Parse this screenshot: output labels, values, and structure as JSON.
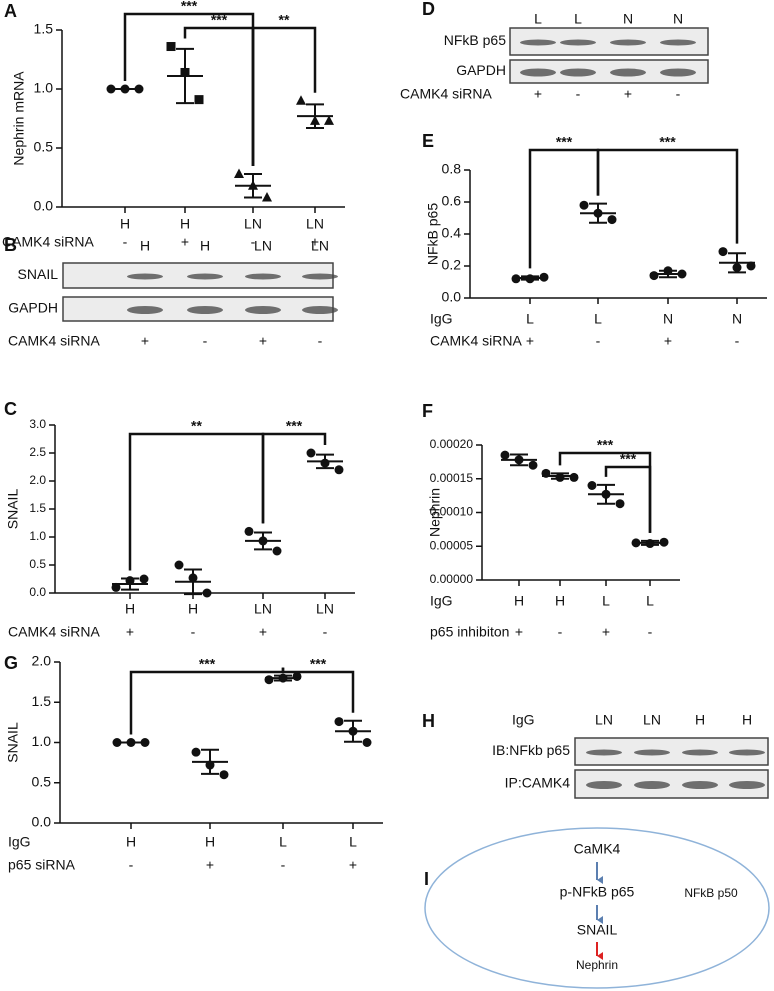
{
  "chart_data": [
    {
      "type": "dot",
      "label": "A",
      "ylabel": "Nephrin mRNA",
      "categories": [
        "H",
        "H",
        "LN",
        "LN"
      ],
      "rows": [
        {
          "label": "CAMK4 siRNA",
          "values": [
            "-",
            "+",
            "-",
            "+"
          ]
        }
      ],
      "markers": [
        "circle",
        "square",
        "triangle",
        "triangle"
      ],
      "ylim": [
        0,
        1.5
      ],
      "yticks": [
        {
          "value": 0,
          "label": "0.0"
        },
        0.5,
        {
          "value": 1,
          "label": "1.0"
        },
        1.5
      ],
      "points": [
        [
          1,
          1,
          1
        ],
        [
          1.36,
          1.14,
          0.91
        ],
        [
          0.28,
          0.18,
          0.08
        ],
        [
          0.9,
          0.73,
          0.73
        ]
      ],
      "means": [
        1,
        1.11,
        0.18,
        0.77
      ],
      "errors": [
        0,
        0.23,
        0.1,
        0.1
      ],
      "annotations": [
        {
          "from": 0,
          "to": 2,
          "text": "***"
        },
        {
          "from": 1,
          "to": 2,
          "text": "***"
        },
        {
          "from": 2,
          "to": 3,
          "text": "**"
        }
      ]
    },
    {
      "type": "dot",
      "label": "C",
      "ylabel": "SNAIL",
      "categories": [
        "H",
        "H",
        "LN",
        "LN"
      ],
      "rows": [
        {
          "label": "CAMK4 siRNA",
          "values": [
            "+",
            "-",
            "+",
            "-"
          ]
        }
      ],
      "ylim": [
        0,
        3
      ],
      "yticks": [
        {
          "value": 0,
          "label": "0.0"
        },
        0.5,
        {
          "value": 1,
          "label": "1.0"
        },
        1.5,
        {
          "value": 2,
          "label": "2.0"
        },
        2.5,
        {
          "value": 3,
          "label": "3.0"
        }
      ],
      "points": [
        [
          0.1,
          0.22,
          0.25
        ],
        [
          0.5,
          0.27,
          0
        ],
        [
          1.1,
          0.93,
          0.75
        ],
        [
          2.5,
          2.32,
          2.2
        ]
      ],
      "means": [
        0.16,
        0.2,
        0.93,
        2.35
      ],
      "errors": [
        0.1,
        0.22,
        0.15,
        0.12
      ],
      "annotations": [
        {
          "from": 0,
          "to": 2,
          "text": "**"
        },
        {
          "from": 2,
          "to": 3,
          "text": "***"
        }
      ]
    },
    {
      "type": "dot",
      "label": "E",
      "ylabel": "NFkB p65",
      "category_label": "IgG",
      "categories": [
        "L",
        "L",
        "N",
        "N"
      ],
      "rows": [
        {
          "label": "CAMK4 siRNA",
          "values": [
            "+",
            "-",
            "+",
            "-"
          ]
        }
      ],
      "ylim": [
        0,
        0.8
      ],
      "yticks": [
        {
          "value": 0,
          "label": "0.0"
        },
        0.2,
        0.4,
        0.6,
        0.8
      ],
      "points": [
        [
          0.12,
          0.12,
          0.13
        ],
        [
          0.58,
          0.53,
          0.49
        ],
        [
          0.14,
          0.17,
          0.15
        ],
        [
          0.29,
          0.19,
          0.2
        ]
      ],
      "means": [
        0.125,
        0.53,
        0.15,
        0.22
      ],
      "errors": [
        0.01,
        0.06,
        0.02,
        0.06
      ],
      "annotations": [
        {
          "from": 0,
          "to": 1,
          "text": "***"
        },
        {
          "from": 1,
          "to": 3,
          "text": "***"
        }
      ]
    },
    {
      "type": "dot",
      "label": "F",
      "ylabel": "Nephrin",
      "category_label": "IgG",
      "categories": [
        "H",
        "H",
        "L",
        "L"
      ],
      "rows": [
        {
          "label": "p65  inhibiton",
          "values": [
            "+",
            "-",
            "+",
            "-"
          ]
        }
      ],
      "ylim": [
        0,
        0.0002
      ],
      "yticks": [
        {
          "value": 0,
          "label": "0.00000"
        },
        {
          "value": 5e-05,
          "label": "0.00005"
        },
        {
          "value": 0.0001,
          "label": "0.00010"
        },
        {
          "value": 0.00015,
          "label": "0.00015"
        },
        {
          "value": 0.0002,
          "label": "0.00020"
        }
      ],
      "points": [
        [
          0.000185,
          0.000178,
          0.00017
        ],
        [
          0.000158,
          0.000152,
          0.000152
        ],
        [
          0.00014,
          0.000127,
          0.000113
        ],
        [
          5.5e-05,
          5.4e-05,
          5.6e-05
        ]
      ],
      "means": [
        0.000178,
        0.000154,
        0.000127,
        5.5e-05
      ],
      "errors": [
        8e-06,
        4e-06,
        1.4e-05,
        3e-06
      ],
      "annotations": [
        {
          "from": 1,
          "to": 3,
          "text": "***"
        },
        {
          "from": 2,
          "to": 3,
          "text": "***"
        }
      ]
    },
    {
      "type": "dot",
      "label": "G",
      "ylabel": "SNAIL",
      "category_label": "IgG",
      "categories": [
        "H",
        "H",
        "L",
        "L"
      ],
      "rows": [
        {
          "label": "p65 siRNA",
          "values": [
            "-",
            "+",
            "-",
            "+"
          ]
        }
      ],
      "ylim": [
        0,
        2
      ],
      "yticks": [
        {
          "value": 0,
          "label": "0.0"
        },
        0.5,
        {
          "value": 1,
          "label": "1.0"
        },
        1.5,
        {
          "value": 2,
          "label": "2.0"
        }
      ],
      "points": [
        [
          1,
          1,
          1
        ],
        [
          0.88,
          0.72,
          0.6
        ],
        [
          1.78,
          1.8,
          1.82
        ],
        [
          1.26,
          1.14,
          1
        ]
      ],
      "means": [
        1,
        0.76,
        1.8,
        1.14
      ],
      "errors": [
        0,
        0.15,
        0.03,
        0.13
      ],
      "annotations": [
        {
          "from": 0,
          "to": 2,
          "text": "***"
        },
        {
          "from": 2,
          "to": 3,
          "text": "***"
        }
      ]
    }
  ],
  "blots": [
    {
      "label": "B",
      "lanes": [
        "H",
        "H",
        "LN",
        "LN"
      ],
      "rows": [
        "SNAIL",
        "GAPDH"
      ],
      "footer_label": "CAMK4 siRNA",
      "footer": [
        "+",
        "-",
        "+",
        "-"
      ]
    },
    {
      "label": "D",
      "lanes": [
        "L",
        "L",
        "N",
        "N"
      ],
      "rows": [
        "NFkB p65",
        "GAPDH"
      ],
      "footer_label": "CAMK4 siRNA",
      "footer": [
        "+",
        "-",
        "+",
        "-"
      ]
    },
    {
      "label": "H",
      "lane_label": "IgG",
      "lanes": [
        "LN",
        "LN",
        "H",
        "H"
      ],
      "rows": [
        "IB:NFkb p65",
        "IP:CAMK4"
      ]
    }
  ],
  "diagram": {
    "label": "I",
    "nodes": [
      "CaMK4",
      "p-NFkB p65",
      "NFkB p50",
      "SNAIL",
      "Nephrin"
    ]
  }
}
